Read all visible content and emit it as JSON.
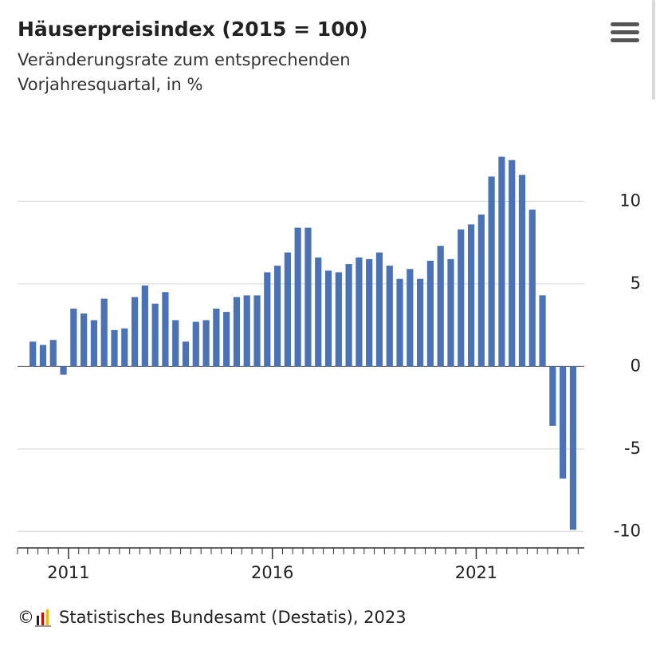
{
  "chart_data": {
    "type": "bar",
    "title": "Häuserpreisindex (2015 = 100)",
    "subtitle": [
      "Veränderungsrate zum entsprechenden",
      "Vorjahresquartal, in %"
    ],
    "source_symbol": "©",
    "source": "Statistisches Bundesamt (Destatis), 2023",
    "color": "#4a72b8",
    "x": [
      2010.125,
      2010.375,
      2010.625,
      2010.875,
      2011.125,
      2011.375,
      2011.625,
      2011.875,
      2012.125,
      2012.375,
      2012.625,
      2012.875,
      2013.125,
      2013.375,
      2013.625,
      2013.875,
      2014.125,
      2014.375,
      2014.625,
      2014.875,
      2015.125,
      2015.375,
      2015.625,
      2015.875,
      2016.125,
      2016.375,
      2016.625,
      2016.875,
      2017.125,
      2017.375,
      2017.625,
      2017.875,
      2018.125,
      2018.375,
      2018.625,
      2018.875,
      2019.125,
      2019.375,
      2019.625,
      2019.875,
      2020.125,
      2020.375,
      2020.625,
      2020.875,
      2021.125,
      2021.375,
      2021.625,
      2021.875,
      2022.125,
      2022.375,
      2022.625,
      2022.875,
      2023.125,
      2023.375
    ],
    "values": [
      1.5,
      1.3,
      1.6,
      -0.5,
      3.5,
      3.2,
      2.8,
      4.1,
      2.2,
      2.3,
      4.2,
      4.9,
      3.8,
      4.5,
      2.8,
      1.5,
      2.7,
      2.8,
      3.5,
      3.3,
      4.2,
      4.3,
      4.3,
      5.7,
      6.1,
      6.9,
      8.4,
      8.4,
      6.6,
      5.8,
      5.7,
      6.2,
      6.6,
      6.5,
      6.9,
      6.1,
      5.3,
      5.9,
      5.3,
      6.4,
      7.3,
      6.5,
      8.3,
      8.6,
      9.2,
      11.5,
      12.7,
      12.5,
      11.6,
      9.5,
      4.3,
      -3.6,
      -6.8,
      -9.9
    ],
    "bar_width": 0.16,
    "xlim": [
      2009.75,
      2023.65
    ],
    "xticks": [
      2011,
      2016,
      2021
    ],
    "x_minor_tick_step": 0.25,
    "ylim": [
      -11,
      13.5
    ],
    "yticks": [
      -10,
      -5,
      0,
      5,
      10
    ],
    "grid": true,
    "y_axis_side": "right"
  }
}
